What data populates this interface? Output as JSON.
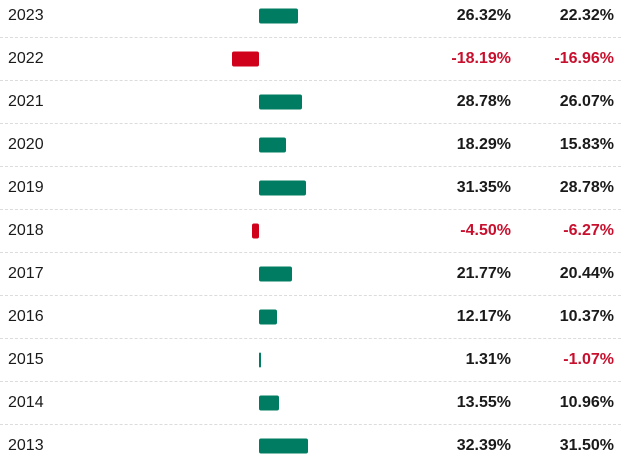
{
  "colors": {
    "positive_bar": "#007c62",
    "negative_bar": "#d0021b",
    "negative_text": "#c8102e",
    "text": "#1a1a1a"
  },
  "rows": [
    {
      "year": "2023",
      "total_return": "26.32%",
      "price_return": "22.32%",
      "bar_value": 26.32
    },
    {
      "year": "2022",
      "total_return": "-18.19%",
      "price_return": "-16.96%",
      "bar_value": -18.19
    },
    {
      "year": "2021",
      "total_return": "28.78%",
      "price_return": "26.07%",
      "bar_value": 28.78
    },
    {
      "year": "2020",
      "total_return": "18.29%",
      "price_return": "15.83%",
      "bar_value": 18.29
    },
    {
      "year": "2019",
      "total_return": "31.35%",
      "price_return": "28.78%",
      "bar_value": 31.35
    },
    {
      "year": "2018",
      "total_return": "-4.50%",
      "price_return": "-6.27%",
      "bar_value": -4.5
    },
    {
      "year": "2017",
      "total_return": "21.77%",
      "price_return": "20.44%",
      "bar_value": 21.77
    },
    {
      "year": "2016",
      "total_return": "12.17%",
      "price_return": "10.37%",
      "bar_value": 12.17
    },
    {
      "year": "2015",
      "total_return": "1.31%",
      "price_return": "-1.07%",
      "bar_value": 1.31
    },
    {
      "year": "2014",
      "total_return": "13.55%",
      "price_return": "10.96%",
      "bar_value": 13.55
    },
    {
      "year": "2013",
      "total_return": "32.39%",
      "price_return": "31.50%",
      "bar_value": 32.39
    }
  ]
}
